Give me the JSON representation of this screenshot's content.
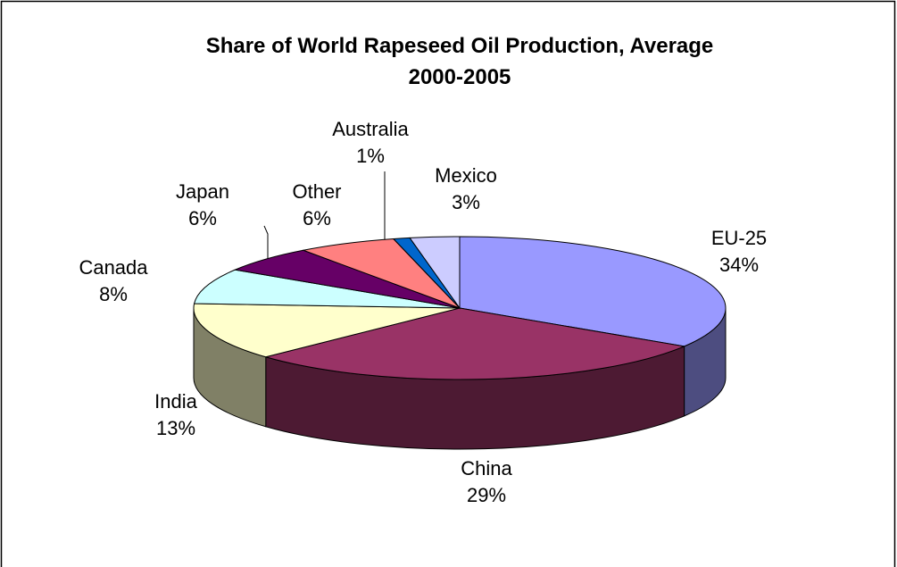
{
  "chart_data": {
    "type": "pie3d",
    "title": "Share of World Rapeseed Oil Production, Average 2000-2005",
    "categories": [
      "EU-25",
      "China",
      "India",
      "Canada",
      "Japan",
      "Other",
      "Australia",
      "Mexico"
    ],
    "values": [
      34,
      29,
      13,
      8,
      6,
      6,
      1,
      3
    ],
    "value_labels": [
      "34%",
      "29%",
      "13%",
      "8%",
      "6%",
      "6%",
      "1%",
      "3%"
    ],
    "colors": [
      "#9999ff",
      "#993366",
      "#ffffcc",
      "#ccffff",
      "#660066",
      "#ff8080",
      "#0066cc",
      "#ccccff"
    ]
  }
}
